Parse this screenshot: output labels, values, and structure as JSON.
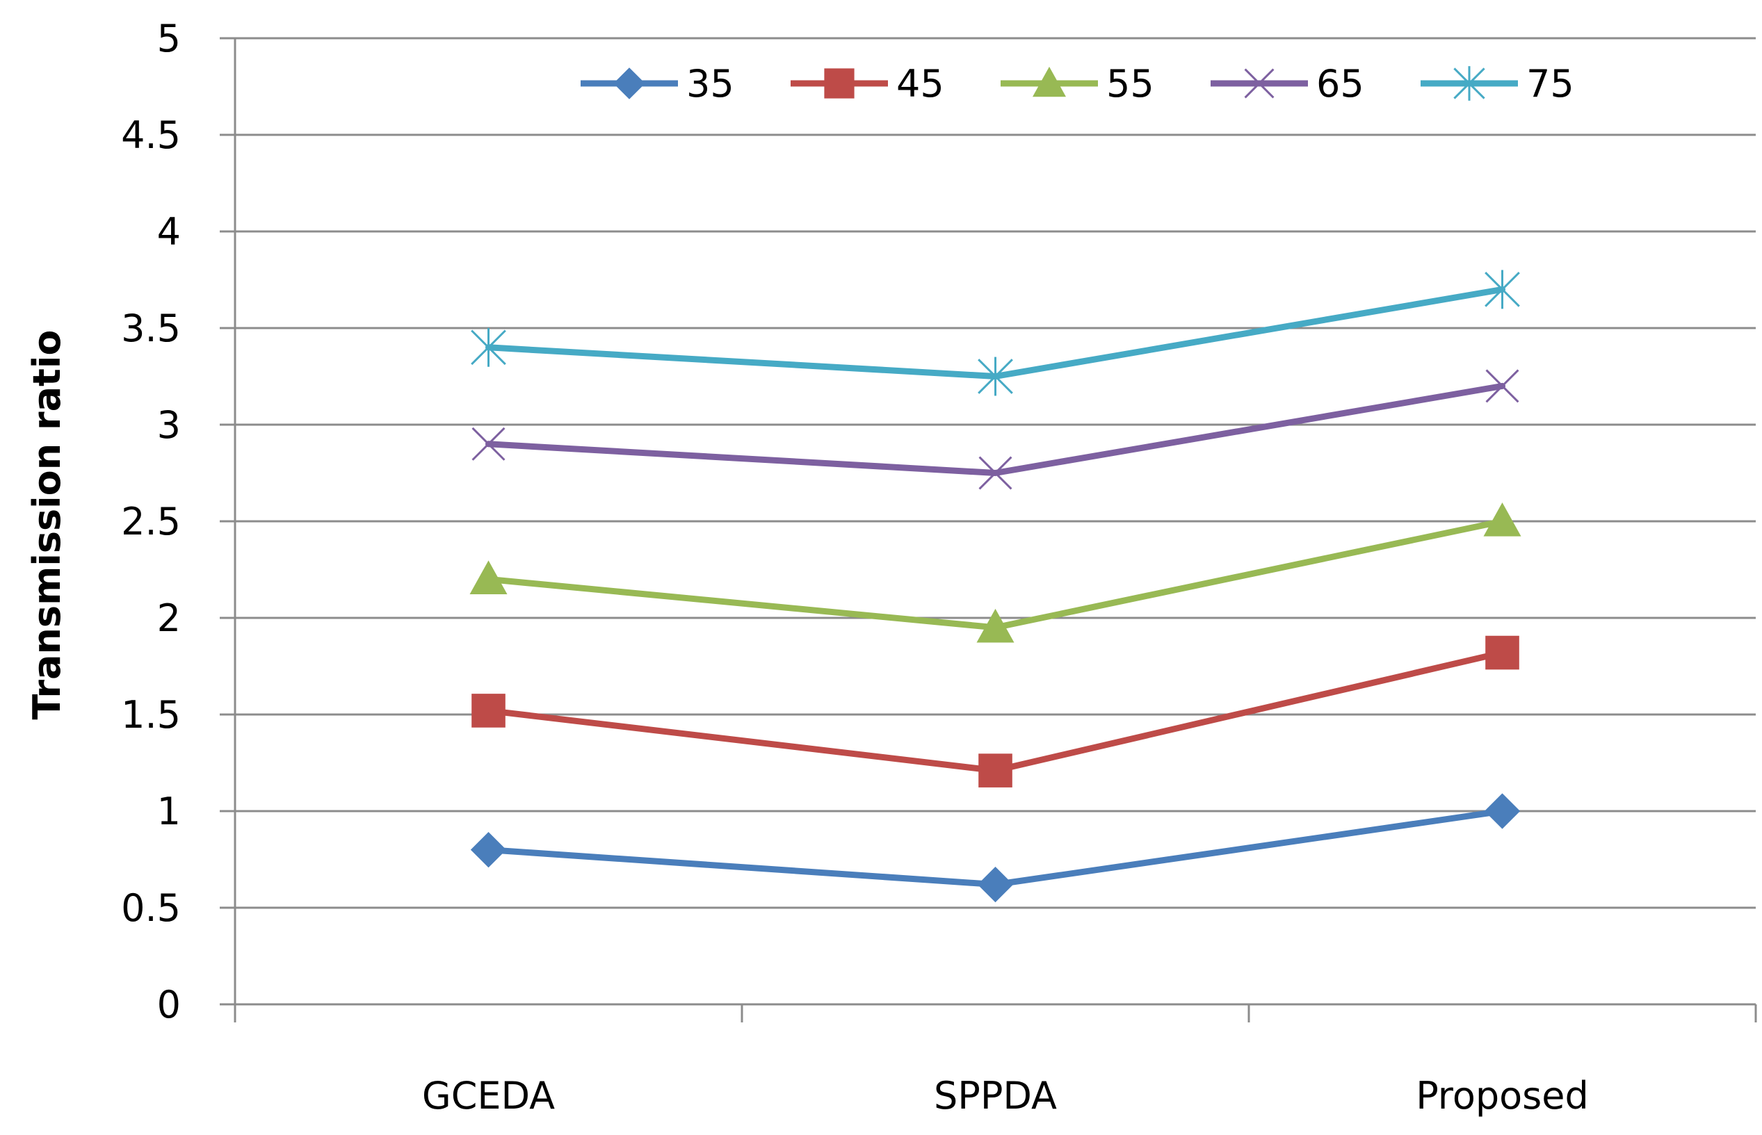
{
  "chart_data": {
    "type": "line",
    "title": "",
    "xlabel": "",
    "ylabel": "Transmission ratio",
    "ylim": [
      0,
      5
    ],
    "yticks": [
      "0",
      "0.5",
      "1",
      "1.5",
      "2",
      "2.5",
      "3",
      "3.5",
      "4",
      "4.5",
      "5"
    ],
    "categories": [
      "GCEDA",
      "SPPDA",
      "Proposed"
    ],
    "grid": "horizontal",
    "legend_position": "top",
    "series": [
      {
        "name": "35",
        "values": [
          0.8,
          0.62,
          1.0
        ],
        "color": "#4a7ebb",
        "marker": "diamond"
      },
      {
        "name": "45",
        "values": [
          1.52,
          1.21,
          1.82
        ],
        "color": "#be4b48",
        "marker": "square"
      },
      {
        "name": "55",
        "values": [
          2.2,
          1.95,
          2.5
        ],
        "color": "#98b954",
        "marker": "triangle"
      },
      {
        "name": "65",
        "values": [
          2.9,
          2.75,
          3.2
        ],
        "color": "#7d60a0",
        "marker": "x"
      },
      {
        "name": "75",
        "values": [
          3.4,
          3.25,
          3.7
        ],
        "color": "#46aac5",
        "marker": "star"
      }
    ]
  }
}
